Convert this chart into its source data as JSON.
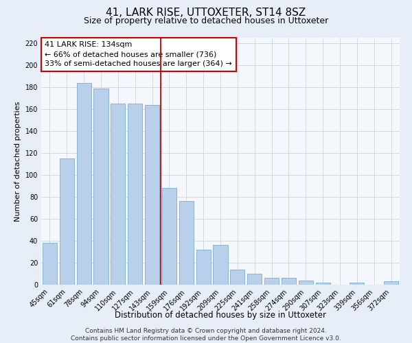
{
  "title": "41, LARK RISE, UTTOXETER, ST14 8SZ",
  "subtitle": "Size of property relative to detached houses in Uttoxeter",
  "xlabel": "Distribution of detached houses by size in Uttoxeter",
  "ylabel": "Number of detached properties",
  "categories": [
    "45sqm",
    "61sqm",
    "78sqm",
    "94sqm",
    "110sqm",
    "127sqm",
    "143sqm",
    "159sqm",
    "176sqm",
    "192sqm",
    "209sqm",
    "225sqm",
    "241sqm",
    "258sqm",
    "274sqm",
    "290sqm",
    "307sqm",
    "323sqm",
    "339sqm",
    "356sqm",
    "372sqm"
  ],
  "values": [
    38,
    115,
    184,
    179,
    165,
    165,
    164,
    88,
    76,
    32,
    36,
    14,
    10,
    6,
    6,
    4,
    2,
    0,
    2,
    0,
    3
  ],
  "bar_color": "#b8d0ea",
  "bar_edge_color": "#7aaed4",
  "vline_x_index": 6,
  "vline_color": "#cc0000",
  "annotation_text": "41 LARK RISE: 134sqm\n← 66% of detached houses are smaller (736)\n33% of semi-detached houses are larger (364) →",
  "annotation_box_facecolor": "#ffffff",
  "annotation_box_edgecolor": "#cc0000",
  "ylim": [
    0,
    225
  ],
  "yticks": [
    0,
    20,
    40,
    60,
    80,
    100,
    120,
    140,
    160,
    180,
    200,
    220
  ],
  "footer_text": "Contains HM Land Registry data © Crown copyright and database right 2024.\nContains public sector information licensed under the Open Government Licence v3.0.",
  "bg_color": "#e8eef8",
  "plot_bg_color": "#f4f8fc",
  "grid_color": "#c5d5e8",
  "title_fontsize": 11,
  "subtitle_fontsize": 9,
  "xlabel_fontsize": 8.5,
  "ylabel_fontsize": 8,
  "tick_fontsize": 7,
  "annotation_fontsize": 8,
  "footer_fontsize": 6.5
}
